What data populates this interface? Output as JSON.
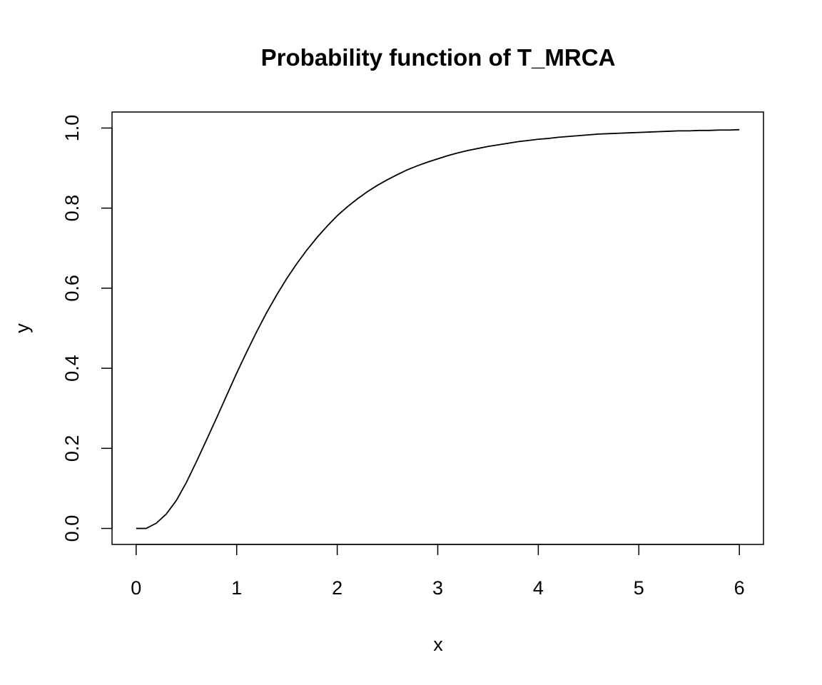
{
  "chart_data": {
    "type": "line",
    "title": "Probability function of T_MRCA",
    "xlabel": "x",
    "ylabel": "y",
    "xlim": [
      -0.24,
      6.24
    ],
    "ylim": [
      -0.04,
      1.04
    ],
    "x_ticks": [
      0,
      1,
      2,
      3,
      4,
      5,
      6
    ],
    "x_tick_labels": [
      "0",
      "1",
      "2",
      "3",
      "4",
      "5",
      "6"
    ],
    "y_ticks": [
      0,
      0.2,
      0.4,
      0.6,
      0.8,
      1.0
    ],
    "y_tick_labels": [
      "0.0",
      "0.2",
      "0.4",
      "0.6",
      "0.8",
      "1.0"
    ],
    "grid": false,
    "legend": false,
    "series": [
      {
        "color": "#000000",
        "x": [
          0,
          0.1,
          0.2,
          0.3,
          0.4,
          0.5,
          0.6,
          0.7,
          0.8,
          0.9,
          1.0,
          1.1,
          1.2,
          1.3,
          1.4,
          1.5,
          1.6,
          1.7,
          1.8,
          1.9,
          2.0,
          2.1,
          2.2,
          2.3,
          2.4,
          2.5,
          2.6,
          2.7,
          2.8,
          2.9,
          3.0,
          3.1,
          3.2,
          3.3,
          3.4,
          3.5,
          3.6,
          3.7,
          3.8,
          3.9,
          4.0,
          4.1,
          4.2,
          4.3,
          4.4,
          4.5,
          4.6,
          4.7,
          4.8,
          4.9,
          5.0,
          5.1,
          5.2,
          5.3,
          5.4,
          5.5,
          5.6,
          5.7,
          5.8,
          5.9,
          6.0
        ],
        "y": [
          0.0,
          0.0,
          0.013,
          0.036,
          0.07,
          0.115,
          0.167,
          0.221,
          0.276,
          0.332,
          0.388,
          0.441,
          0.492,
          0.54,
          0.584,
          0.625,
          0.662,
          0.696,
          0.727,
          0.755,
          0.781,
          0.803,
          0.823,
          0.841,
          0.857,
          0.871,
          0.884,
          0.896,
          0.906,
          0.915,
          0.923,
          0.931,
          0.938,
          0.944,
          0.949,
          0.954,
          0.958,
          0.962,
          0.966,
          0.969,
          0.972,
          0.974,
          0.977,
          0.979,
          0.981,
          0.983,
          0.985,
          0.986,
          0.987,
          0.988,
          0.989,
          0.99,
          0.991,
          0.992,
          0.993,
          0.993,
          0.994,
          0.994,
          0.995,
          0.995,
          0.996
        ]
      }
    ]
  }
}
